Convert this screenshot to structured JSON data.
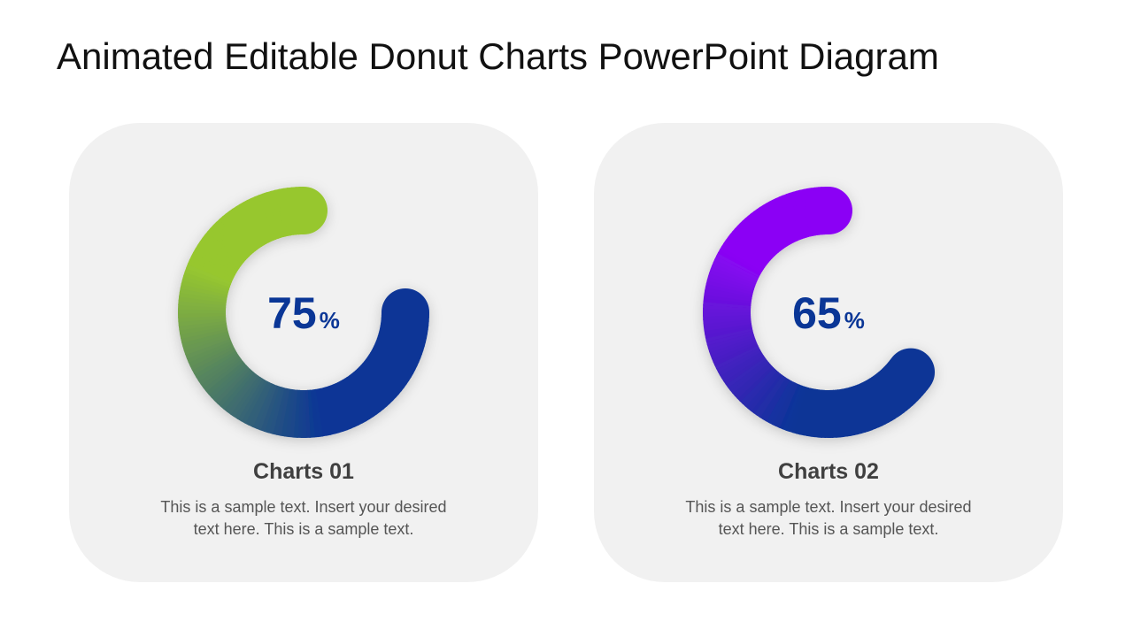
{
  "slide": {
    "title": "Animated Editable Donut Charts PowerPoint Diagram"
  },
  "cards": [
    {
      "title": "Charts 01",
      "description": "This is a sample text. Insert your desired text here. This is a sample text.",
      "percent_label": "75",
      "percent_symbol": "%",
      "colors": {
        "start": "#0a3696",
        "end": "#97c72f"
      }
    },
    {
      "title": "Charts 02",
      "description": "This is a sample text. Insert your desired text here. This is a sample text.",
      "percent_label": "65",
      "percent_symbol": "%",
      "colors": {
        "start": "#0a3696",
        "end": "#8b05f5"
      }
    }
  ],
  "chart_data": [
    {
      "type": "pie",
      "title": "Charts 01",
      "values": [
        75
      ],
      "unit": "%",
      "max": 100,
      "colors": [
        "#0a3696",
        "#97c72f"
      ]
    },
    {
      "type": "pie",
      "title": "Charts 02",
      "values": [
        65
      ],
      "unit": "%",
      "max": 100,
      "colors": [
        "#0a3696",
        "#8b05f5"
      ]
    }
  ]
}
